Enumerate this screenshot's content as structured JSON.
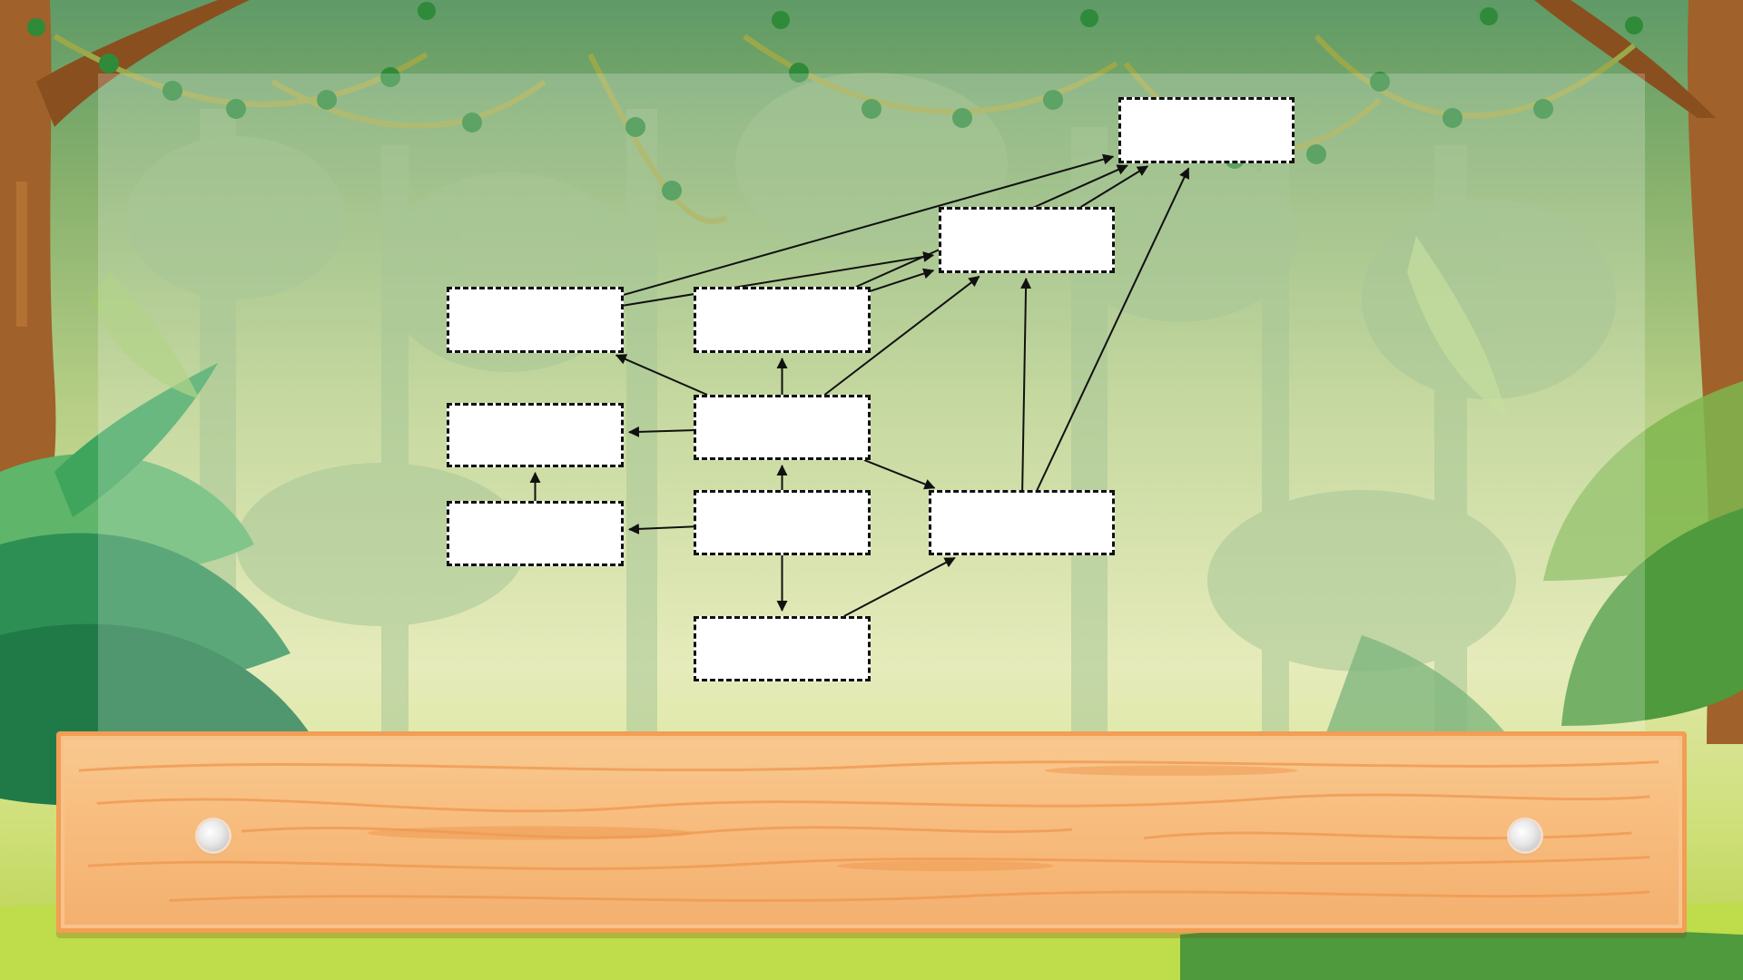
{
  "diagram": {
    "nodes": [
      {
        "id": "top_right",
        "label": ""
      },
      {
        "id": "upper_right",
        "label": ""
      },
      {
        "id": "left_top",
        "label": ""
      },
      {
        "id": "center_top",
        "label": ""
      },
      {
        "id": "left_middle",
        "label": ""
      },
      {
        "id": "center_middle",
        "label": ""
      },
      {
        "id": "left_bottom",
        "label": ""
      },
      {
        "id": "center_lower",
        "label": ""
      },
      {
        "id": "right_lower",
        "label": ""
      },
      {
        "id": "center_bottom",
        "label": ""
      }
    ],
    "edges": [
      {
        "from": "left_top",
        "to": "top_right"
      },
      {
        "from": "left_top",
        "to": "upper_right"
      },
      {
        "from": "center_top",
        "to": "top_right"
      },
      {
        "from": "center_top",
        "to": "upper_right"
      },
      {
        "from": "upper_right",
        "to": "top_right"
      },
      {
        "from": "right_lower",
        "to": "top_right"
      },
      {
        "from": "right_lower",
        "to": "upper_right"
      },
      {
        "from": "center_middle",
        "to": "left_top"
      },
      {
        "from": "center_middle",
        "to": "center_top"
      },
      {
        "from": "center_middle",
        "to": "upper_right"
      },
      {
        "from": "center_middle",
        "to": "left_middle"
      },
      {
        "from": "center_middle",
        "to": "right_lower"
      },
      {
        "from": "left_bottom",
        "to": "left_middle"
      },
      {
        "from": "center_lower",
        "to": "center_middle"
      },
      {
        "from": "center_lower",
        "to": "left_bottom"
      },
      {
        "from": "center_lower",
        "to": "center_bottom"
      },
      {
        "from": "center_bottom",
        "to": "right_lower"
      }
    ]
  },
  "plank": {
    "text": ""
  },
  "colors": {
    "box_fill": "#ffffff",
    "box_border": "#111111",
    "arrow": "#111111",
    "plank": "#f7bb7c",
    "plank_border": "#f39d55",
    "sky_top": "#5f9a67",
    "ground": "#b8d14a"
  }
}
